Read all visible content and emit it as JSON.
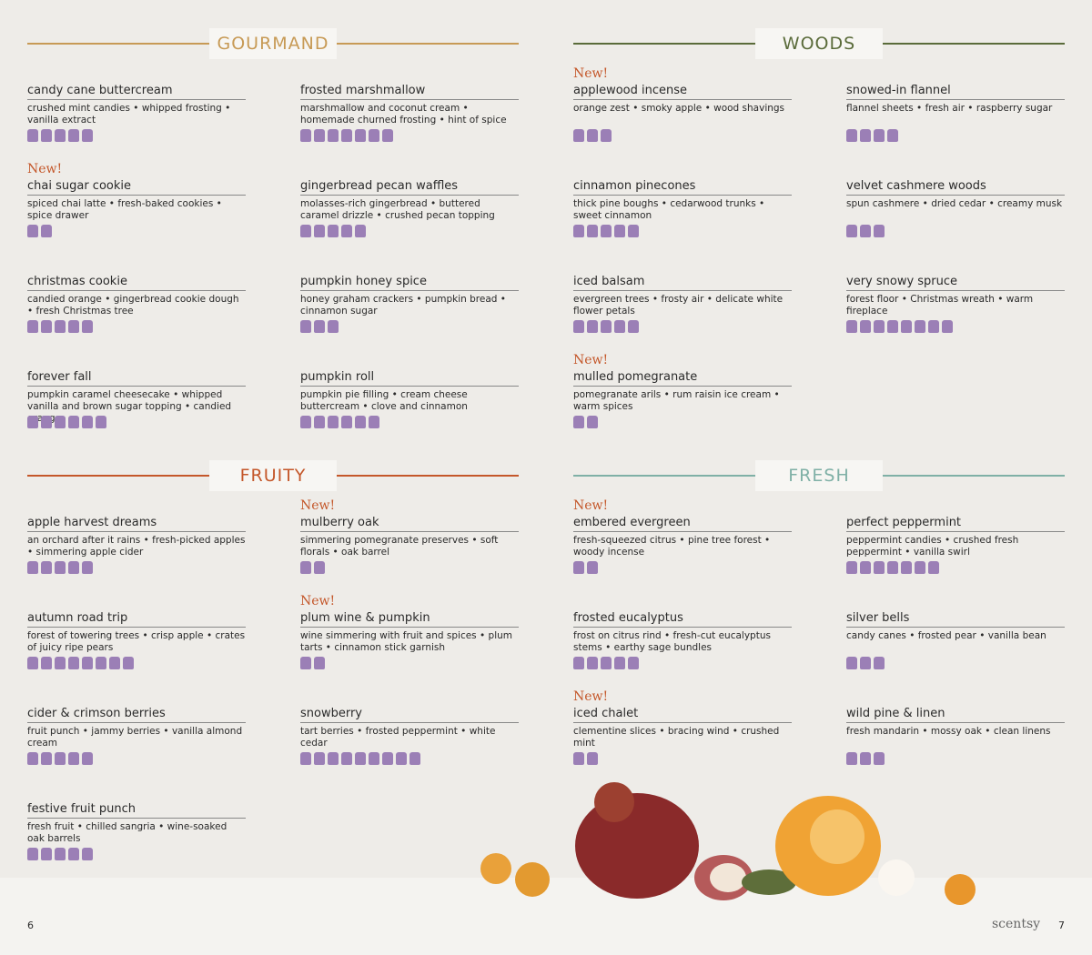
{
  "sections": [
    {
      "title": "GOURMAND",
      "color": "#c79a55",
      "columns": [
        [
          {
            "name": "candy cane buttercream",
            "description": "crushed mint candies • whipped frosting • vanilla extract"
          },
          {
            "new": "New!",
            "name": "chai sugar cookie",
            "description": "spiced chai latte • fresh-baked cookies • spice drawer"
          },
          {
            "name": "christmas cookie",
            "description": "candied orange • gingerbread cookie dough • fresh Christmas tree"
          },
          {
            "name": "forever fall",
            "description": "pumpkin caramel cheesecake • whipped vanilla and brown sugar topping • candied orange"
          }
        ],
        [
          {
            "name": "frosted marshmallow",
            "description": "marshmallow and coconut cream • homemade churned frosting • hint of spice"
          },
          {
            "name": "gingerbread pecan waffles",
            "description": "molasses-rich gingerbread • buttered caramel drizzle • crushed pecan topping"
          },
          {
            "name": "pumpkin honey spice",
            "description": "honey graham crackers • pumpkin bread • cinnamon sugar"
          },
          {
            "name": "pumpkin roll",
            "description": "pumpkin pie filling • cream cheese buttercream • clove and cinnamon"
          }
        ]
      ]
    },
    {
      "title": "WOODS",
      "color": "#5a6b3a",
      "columns": [
        [
          {
            "new": "New!",
            "name": "applewood incense",
            "description": "orange zest • smoky apple • wood shavings"
          },
          {
            "name": "cinnamon pinecones",
            "description": "thick pine boughs • cedarwood trunks • sweet cinnamon"
          },
          {
            "name": "iced balsam",
            "description": "evergreen trees • frosty air • delicate white flower petals"
          },
          {
            "new": "New!",
            "name": "mulled pomegranate",
            "description": "pomegranate arils • rum raisin ice cream • warm spices"
          }
        ],
        [
          {
            "name": "snowed-in flannel",
            "description": "flannel sheets • fresh air • raspberry sugar"
          },
          {
            "name": "velvet cashmere woods",
            "description": "spun cashmere • dried cedar • creamy musk"
          },
          {
            "name": "very snowy spruce",
            "description": "forest floor • Christmas wreath • warm fireplace"
          }
        ]
      ]
    },
    {
      "title": "FRUITY",
      "color": "#c4572a",
      "columns": [
        [
          {
            "name": "apple harvest dreams",
            "description": "an orchard after it rains • fresh-picked apples • simmering apple cider"
          },
          {
            "name": "autumn road trip",
            "description": "forest of towering trees • crisp apple • crates of juicy ripe pears"
          },
          {
            "name": "cider & crimson berries",
            "description": "fruit punch • jammy berries • vanilla almond cream"
          },
          {
            "name": "festive fruit punch",
            "description": "fresh fruit • chilled sangria • wine-soaked oak barrels"
          }
        ],
        [
          {
            "new": "New!",
            "name": "mulberry oak",
            "description": "simmering pomegranate preserves • soft florals • oak barrel"
          },
          {
            "new": "New!",
            "name": "plum wine & pumpkin",
            "description": "wine simmering with fruit and spices • plum tarts • cinnamon stick garnish"
          },
          {
            "name": "snowberry",
            "description": "tart berries • frosted peppermint • white cedar"
          }
        ]
      ]
    },
    {
      "title": "FRESH",
      "color": "#7fb0a6",
      "columns": [
        [
          {
            "new": "New!",
            "name": "embered evergreen",
            "description": "fresh-squeezed citrus • pine tree forest • woody incense"
          },
          {
            "name": "frosted eucalyptus",
            "description": "frost on citrus rind • fresh-cut eucalyptus stems • earthy sage bundles"
          },
          {
            "new": "New!",
            "name": "iced chalet",
            "description": "clementine slices • bracing wind • crushed mint"
          }
        ],
        [
          {
            "name": "perfect peppermint",
            "description": "peppermint candies • crushed fresh peppermint • vanilla swirl"
          },
          {
            "name": "silver bells",
            "description": "candy canes • frosted pear • vanilla bean"
          },
          {
            "name": "wild pine & linen",
            "description": "fresh mandarin • mossy oak • clean linens"
          }
        ]
      ]
    }
  ],
  "footer": {
    "left_page": "6",
    "brand": "scentsy",
    "right_page": "7"
  }
}
